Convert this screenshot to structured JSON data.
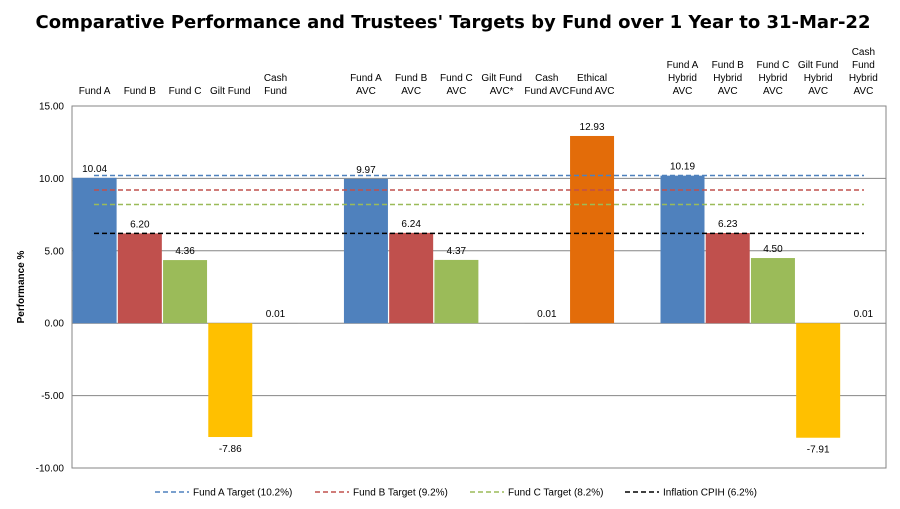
{
  "chart_data": {
    "type": "bar",
    "title": "Comparative Performance and Trustees' Targets by Fund over 1 Year to 31-Mar-22",
    "xlabel": "",
    "ylabel": "Performance %",
    "ylim": [
      -10,
      15
    ],
    "yticks": [
      "15.00",
      "10.00",
      "5.00",
      "0.00",
      "-5.00",
      "-10.00"
    ],
    "grid": true,
    "legend_position": "bottom",
    "categories": [
      {
        "label": [
          "Fund A"
        ],
        "value": 10.04,
        "value_label": "10.04",
        "color": "#4f81bd",
        "slot": 0
      },
      {
        "label": [
          "Fund B"
        ],
        "value": 6.2,
        "value_label": "6.20",
        "color": "#c0504d",
        "slot": 1
      },
      {
        "label": [
          "Fund C"
        ],
        "value": 4.36,
        "value_label": "4.36",
        "color": "#9bbb59",
        "slot": 2
      },
      {
        "label": [
          "Gilt Fund"
        ],
        "value": -7.86,
        "value_label": "-7.86",
        "color": "#ffc000",
        "slot": 3
      },
      {
        "label": [
          "Cash",
          "Fund"
        ],
        "value": 0.01,
        "value_label": "0.01",
        "color": "#7f7f7f",
        "slot": 4
      },
      {
        "label": [
          "Fund A",
          "AVC"
        ],
        "value": 9.97,
        "value_label": "9.97",
        "color": "#4f81bd",
        "slot": 6
      },
      {
        "label": [
          "Fund B",
          "AVC"
        ],
        "value": 6.24,
        "value_label": "6.24",
        "color": "#c0504d",
        "slot": 7
      },
      {
        "label": [
          "Fund C",
          "AVC"
        ],
        "value": 4.37,
        "value_label": "4.37",
        "color": "#9bbb59",
        "slot": 8
      },
      {
        "label": [
          "Gilt Fund",
          "AVC*"
        ],
        "value": null,
        "value_label": "",
        "color": "#ffc000",
        "slot": 9
      },
      {
        "label": [
          "Cash",
          "Fund AVC"
        ],
        "value": 0.01,
        "value_label": "0.01",
        "color": "#7f7f7f",
        "slot": 10
      },
      {
        "label": [
          "Ethical",
          "Fund AVC"
        ],
        "value": 12.93,
        "value_label": "12.93",
        "color": "#e36c09",
        "slot": 11
      },
      {
        "label": [
          "Fund A",
          "Hybrid",
          "AVC"
        ],
        "value": 10.19,
        "value_label": "10.19",
        "color": "#4f81bd",
        "slot": 13
      },
      {
        "label": [
          "Fund B",
          "Hybrid",
          "AVC"
        ],
        "value": 6.23,
        "value_label": "6.23",
        "color": "#c0504d",
        "slot": 14
      },
      {
        "label": [
          "Fund C",
          "Hybrid",
          "AVC"
        ],
        "value": 4.5,
        "value_label": "4.50",
        "color": "#9bbb59",
        "slot": 15
      },
      {
        "label": [
          "Gilt Fund",
          "Hybrid",
          "AVC"
        ],
        "value": -7.91,
        "value_label": "-7.91",
        "color": "#ffc000",
        "slot": 16
      },
      {
        "label": [
          "Cash",
          "Fund",
          "Hybrid",
          "AVC"
        ],
        "value": 0.01,
        "value_label": "0.01",
        "color": "#7f7f7f",
        "slot": 17
      }
    ],
    "target_lines": [
      {
        "name": "Fund A Target (10.2%)",
        "value": 10.2,
        "color": "#4f81bd"
      },
      {
        "name": "Fund B Target (9.2%)",
        "value": 9.2,
        "color": "#c0504d"
      },
      {
        "name": "Fund C Target (8.2%)",
        "value": 8.2,
        "color": "#9bbb59"
      },
      {
        "name": "Inflation CPIH (6.2%)",
        "value": 6.2,
        "color": "#000000"
      }
    ]
  }
}
